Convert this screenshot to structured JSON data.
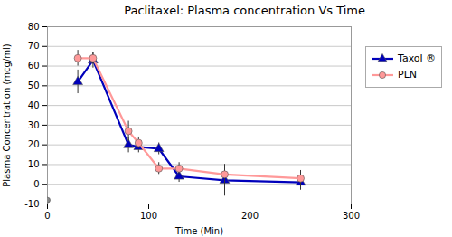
{
  "chart_data": {
    "type": "line",
    "title": "Paclitaxel: Plasma concentration Vs Time",
    "xlabel": "Time (Min)",
    "ylabel": "Plasma Concentration (mcg/ml)",
    "xlim": [
      0,
      300
    ],
    "xticks": [
      0,
      100,
      200,
      300
    ],
    "ylim": [
      -10,
      80
    ],
    "yticks": [
      -10,
      0,
      10,
      20,
      30,
      40,
      50,
      60,
      70,
      80
    ],
    "grid": true,
    "legend": "right",
    "series": [
      {
        "name": "Taxol ®",
        "color": "#0000bb",
        "marker": "triangle",
        "x": [
          30,
          45,
          80,
          90,
          110,
          130,
          175,
          250
        ],
        "values": [
          52,
          63,
          20,
          19,
          18,
          4,
          2,
          1
        ],
        "errors": [
          6,
          4,
          4,
          3,
          3,
          3,
          8,
          4
        ]
      },
      {
        "name": "PLN",
        "color": "#ff9999",
        "marker": "circle",
        "x": [
          30,
          45,
          80,
          90,
          110,
          130,
          175,
          250
        ],
        "values": [
          64,
          64,
          27,
          21,
          8,
          8,
          5,
          3
        ],
        "errors": [
          4,
          3,
          5,
          3,
          3,
          3,
          5,
          4
        ]
      },
      {
        "type": "scatter",
        "color": "#888888",
        "marker": "circle",
        "x": [
          0
        ],
        "values": [
          -8
        ]
      }
    ]
  }
}
